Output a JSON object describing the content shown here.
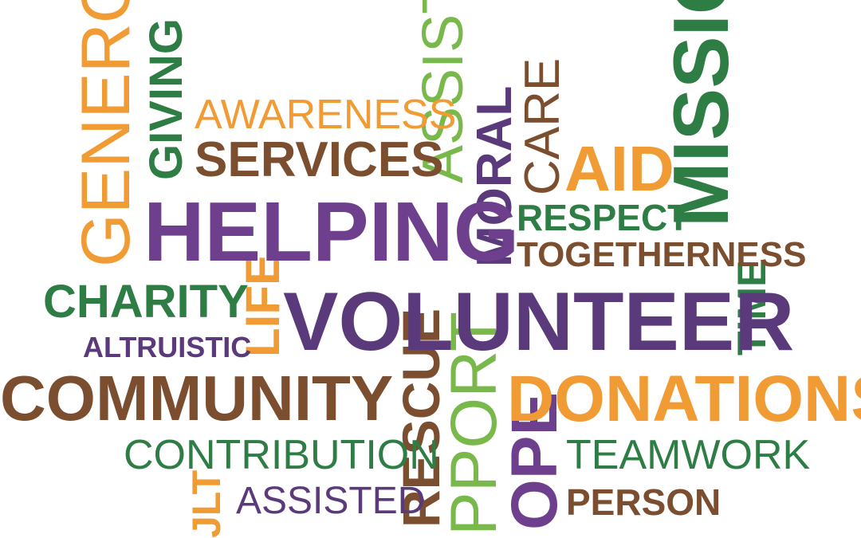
{
  "palette": {
    "orange": "#F19B34",
    "brown": "#7A4E2E",
    "purple": "#6D3F8C",
    "dark_purple": "#5A3A7A",
    "green": "#2E7D45",
    "light_green": "#79B84A"
  },
  "words": {
    "generous": "GENEROU",
    "giving": "GIVING",
    "awareness": "AWARENESS",
    "services": "SERVICES",
    "assistance": "ASSISTAN",
    "moral": "MORAL",
    "care": "CARE",
    "aid": "AID",
    "mission": "MISSIOI",
    "helping": "HELPING",
    "respect": "RESPECT",
    "togetherness": "TOGETHERNESS",
    "charity": "CHARITY",
    "life": "LIFE",
    "volunteer": "VOLUNTEER",
    "time": "TIME",
    "altruistic": "ALTRUISTIC",
    "community": "COMMUNITY",
    "rescue": "RESCUE",
    "support": "PPORT",
    "donations": "DONATIONS",
    "contribution": "CONTRIBUTION",
    "hope": "OPE",
    "teamwork": "TEAMWORK",
    "adult": "JLT",
    "assisted": "ASSISTED",
    "person": "PERSON"
  }
}
